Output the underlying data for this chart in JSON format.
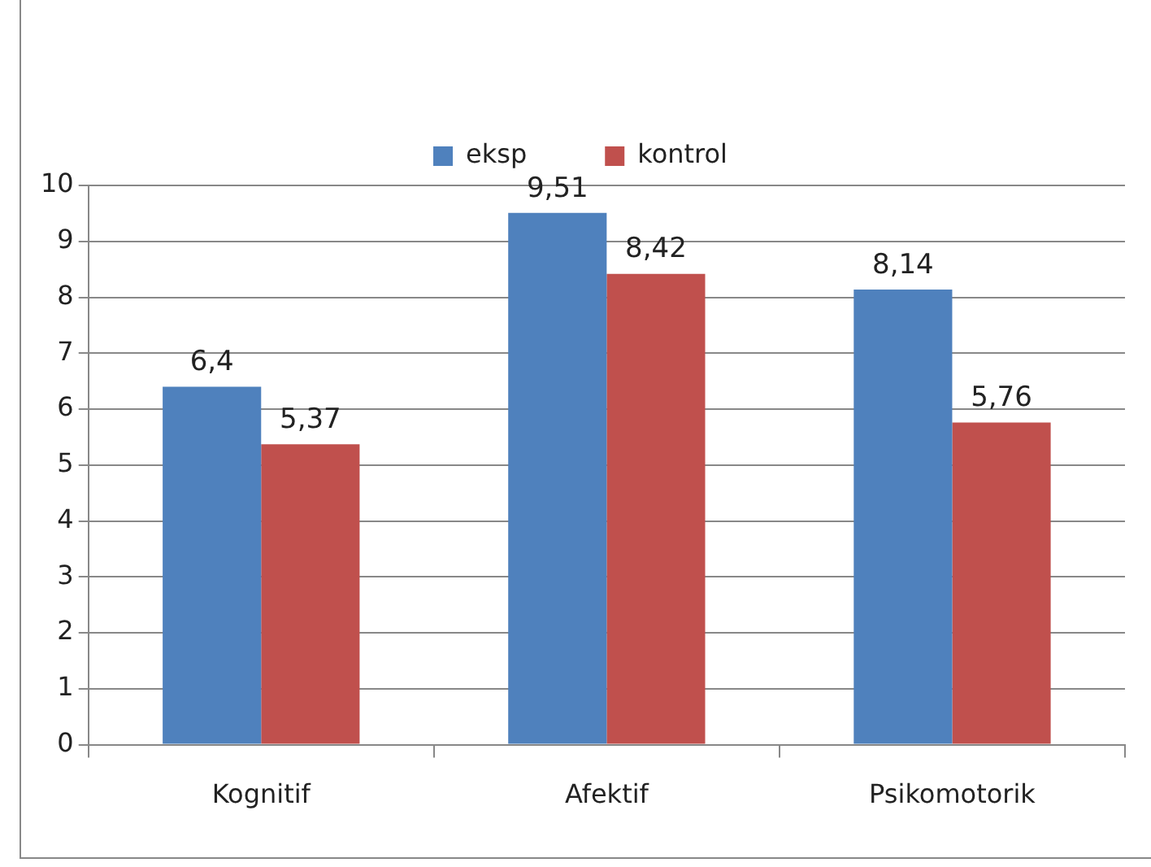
{
  "chart_data": {
    "type": "bar",
    "categories": [
      "Kognitif",
      "Afektif",
      "Psikomotorik"
    ],
    "series": [
      {
        "name": "eksp",
        "color": "#4f81bd",
        "values": [
          6.4,
          9.51,
          8.14
        ],
        "value_labels": [
          "6,4",
          "9,51",
          "8,14"
        ]
      },
      {
        "name": "kontrol",
        "color": "#c0504d",
        "values": [
          5.37,
          8.42,
          5.76
        ],
        "value_labels": [
          "5,37",
          "8,42",
          "5,76"
        ]
      }
    ],
    "ylim": [
      0,
      10
    ],
    "yticks": [
      0,
      1,
      2,
      3,
      4,
      5,
      6,
      7,
      8,
      9,
      10
    ],
    "grid": "y",
    "legend": "top"
  }
}
